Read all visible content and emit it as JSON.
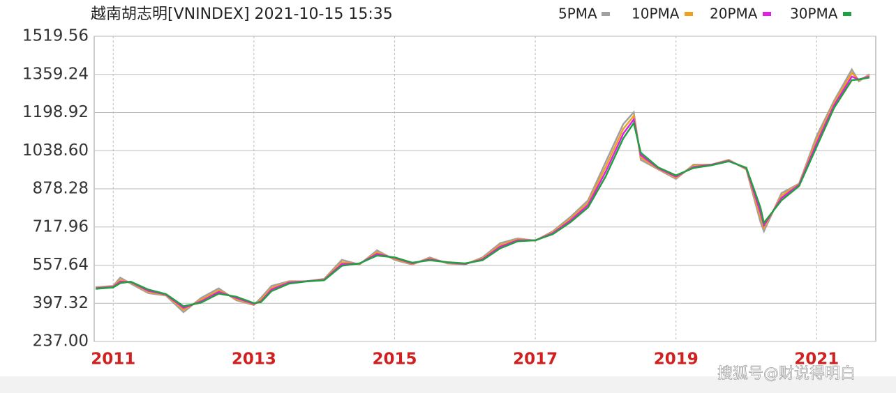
{
  "chart_data": {
    "type": "line",
    "title": "越南胡志明[VNINDEX] 2021-10-15 15:35",
    "watermark": "搜狐号@财说得明白",
    "x": [
      2010.75,
      2011.0,
      2011.1,
      2011.25,
      2011.5,
      2011.75,
      2012.0,
      2012.25,
      2012.5,
      2012.75,
      2013.0,
      2013.1,
      2013.25,
      2013.5,
      2013.75,
      2014.0,
      2014.25,
      2014.5,
      2014.75,
      2015.0,
      2015.25,
      2015.5,
      2015.75,
      2016.0,
      2016.25,
      2016.5,
      2016.75,
      2017.0,
      2017.25,
      2017.5,
      2017.75,
      2018.0,
      2018.25,
      2018.4,
      2018.5,
      2018.75,
      2019.0,
      2019.25,
      2019.5,
      2019.75,
      2020.0,
      2020.2,
      2020.25,
      2020.5,
      2020.75,
      2021.0,
      2021.25,
      2021.5,
      2021.6,
      2021.75
    ],
    "series": [
      {
        "name": "5PMA",
        "color": "#a0a0a0",
        "values": [
          465,
          470,
          505,
          480,
          440,
          430,
          360,
          420,
          460,
          410,
          390,
          420,
          470,
          490,
          490,
          500,
          580,
          560,
          620,
          580,
          560,
          590,
          565,
          560,
          590,
          650,
          670,
          660,
          700,
          760,
          830,
          990,
          1150,
          1200,
          1000,
          960,
          920,
          980,
          980,
          1000,
          960,
          740,
          700,
          860,
          900,
          1100,
          1250,
          1380,
          1330,
          1360
        ]
      },
      {
        "name": "10PMA",
        "color": "#f0a020",
        "values": [
          462,
          468,
          495,
          485,
          445,
          432,
          370,
          412,
          452,
          415,
          392,
          412,
          462,
          487,
          490,
          498,
          570,
          562,
          612,
          584,
          562,
          586,
          567,
          562,
          586,
          642,
          666,
          661,
          696,
          752,
          820,
          970,
          1130,
          1185,
          1010,
          962,
          925,
          975,
          980,
          998,
          962,
          760,
          715,
          850,
          898,
          1085,
          1240,
          1365,
          1335,
          1355
        ]
      },
      {
        "name": "20PMA",
        "color": "#e020e0",
        "values": [
          460,
          466,
          488,
          487,
          450,
          434,
          378,
          405,
          445,
          420,
          395,
          405,
          455,
          484,
          490,
          496,
          562,
          564,
          605,
          588,
          565,
          582,
          569,
          563,
          582,
          635,
          662,
          662,
          692,
          745,
          810,
          950,
          1110,
          1170,
          1020,
          965,
          930,
          970,
          979,
          996,
          965,
          780,
          725,
          840,
          895,
          1070,
          1230,
          1350,
          1338,
          1350
        ]
      },
      {
        "name": "30PMA",
        "color": "#20a040",
        "values": [
          458,
          464,
          482,
          488,
          455,
          436,
          385,
          400,
          438,
          425,
          398,
          402,
          448,
          480,
          489,
          494,
          555,
          565,
          598,
          590,
          568,
          578,
          570,
          565,
          578,
          628,
          658,
          662,
          688,
          738,
          800,
          930,
          1090,
          1155,
          1030,
          968,
          935,
          966,
          977,
          994,
          967,
          800,
          735,
          830,
          890,
          1055,
          1220,
          1335,
          1338,
          1346
        ]
      }
    ],
    "xlim": [
      2010.73,
      2021.84
    ],
    "xticks": [
      2011,
      2013,
      2015,
      2017,
      2019,
      2021
    ],
    "ylim": [
      237,
      1519.56
    ],
    "yticks": [
      {
        "value": 237,
        "label": "237.00"
      },
      397.32,
      557.64,
      717.96,
      878.28,
      {
        "value": 1038.6,
        "label": "1038.60"
      },
      1198.92,
      1359.24,
      1519.56
    ],
    "grid": true
  }
}
